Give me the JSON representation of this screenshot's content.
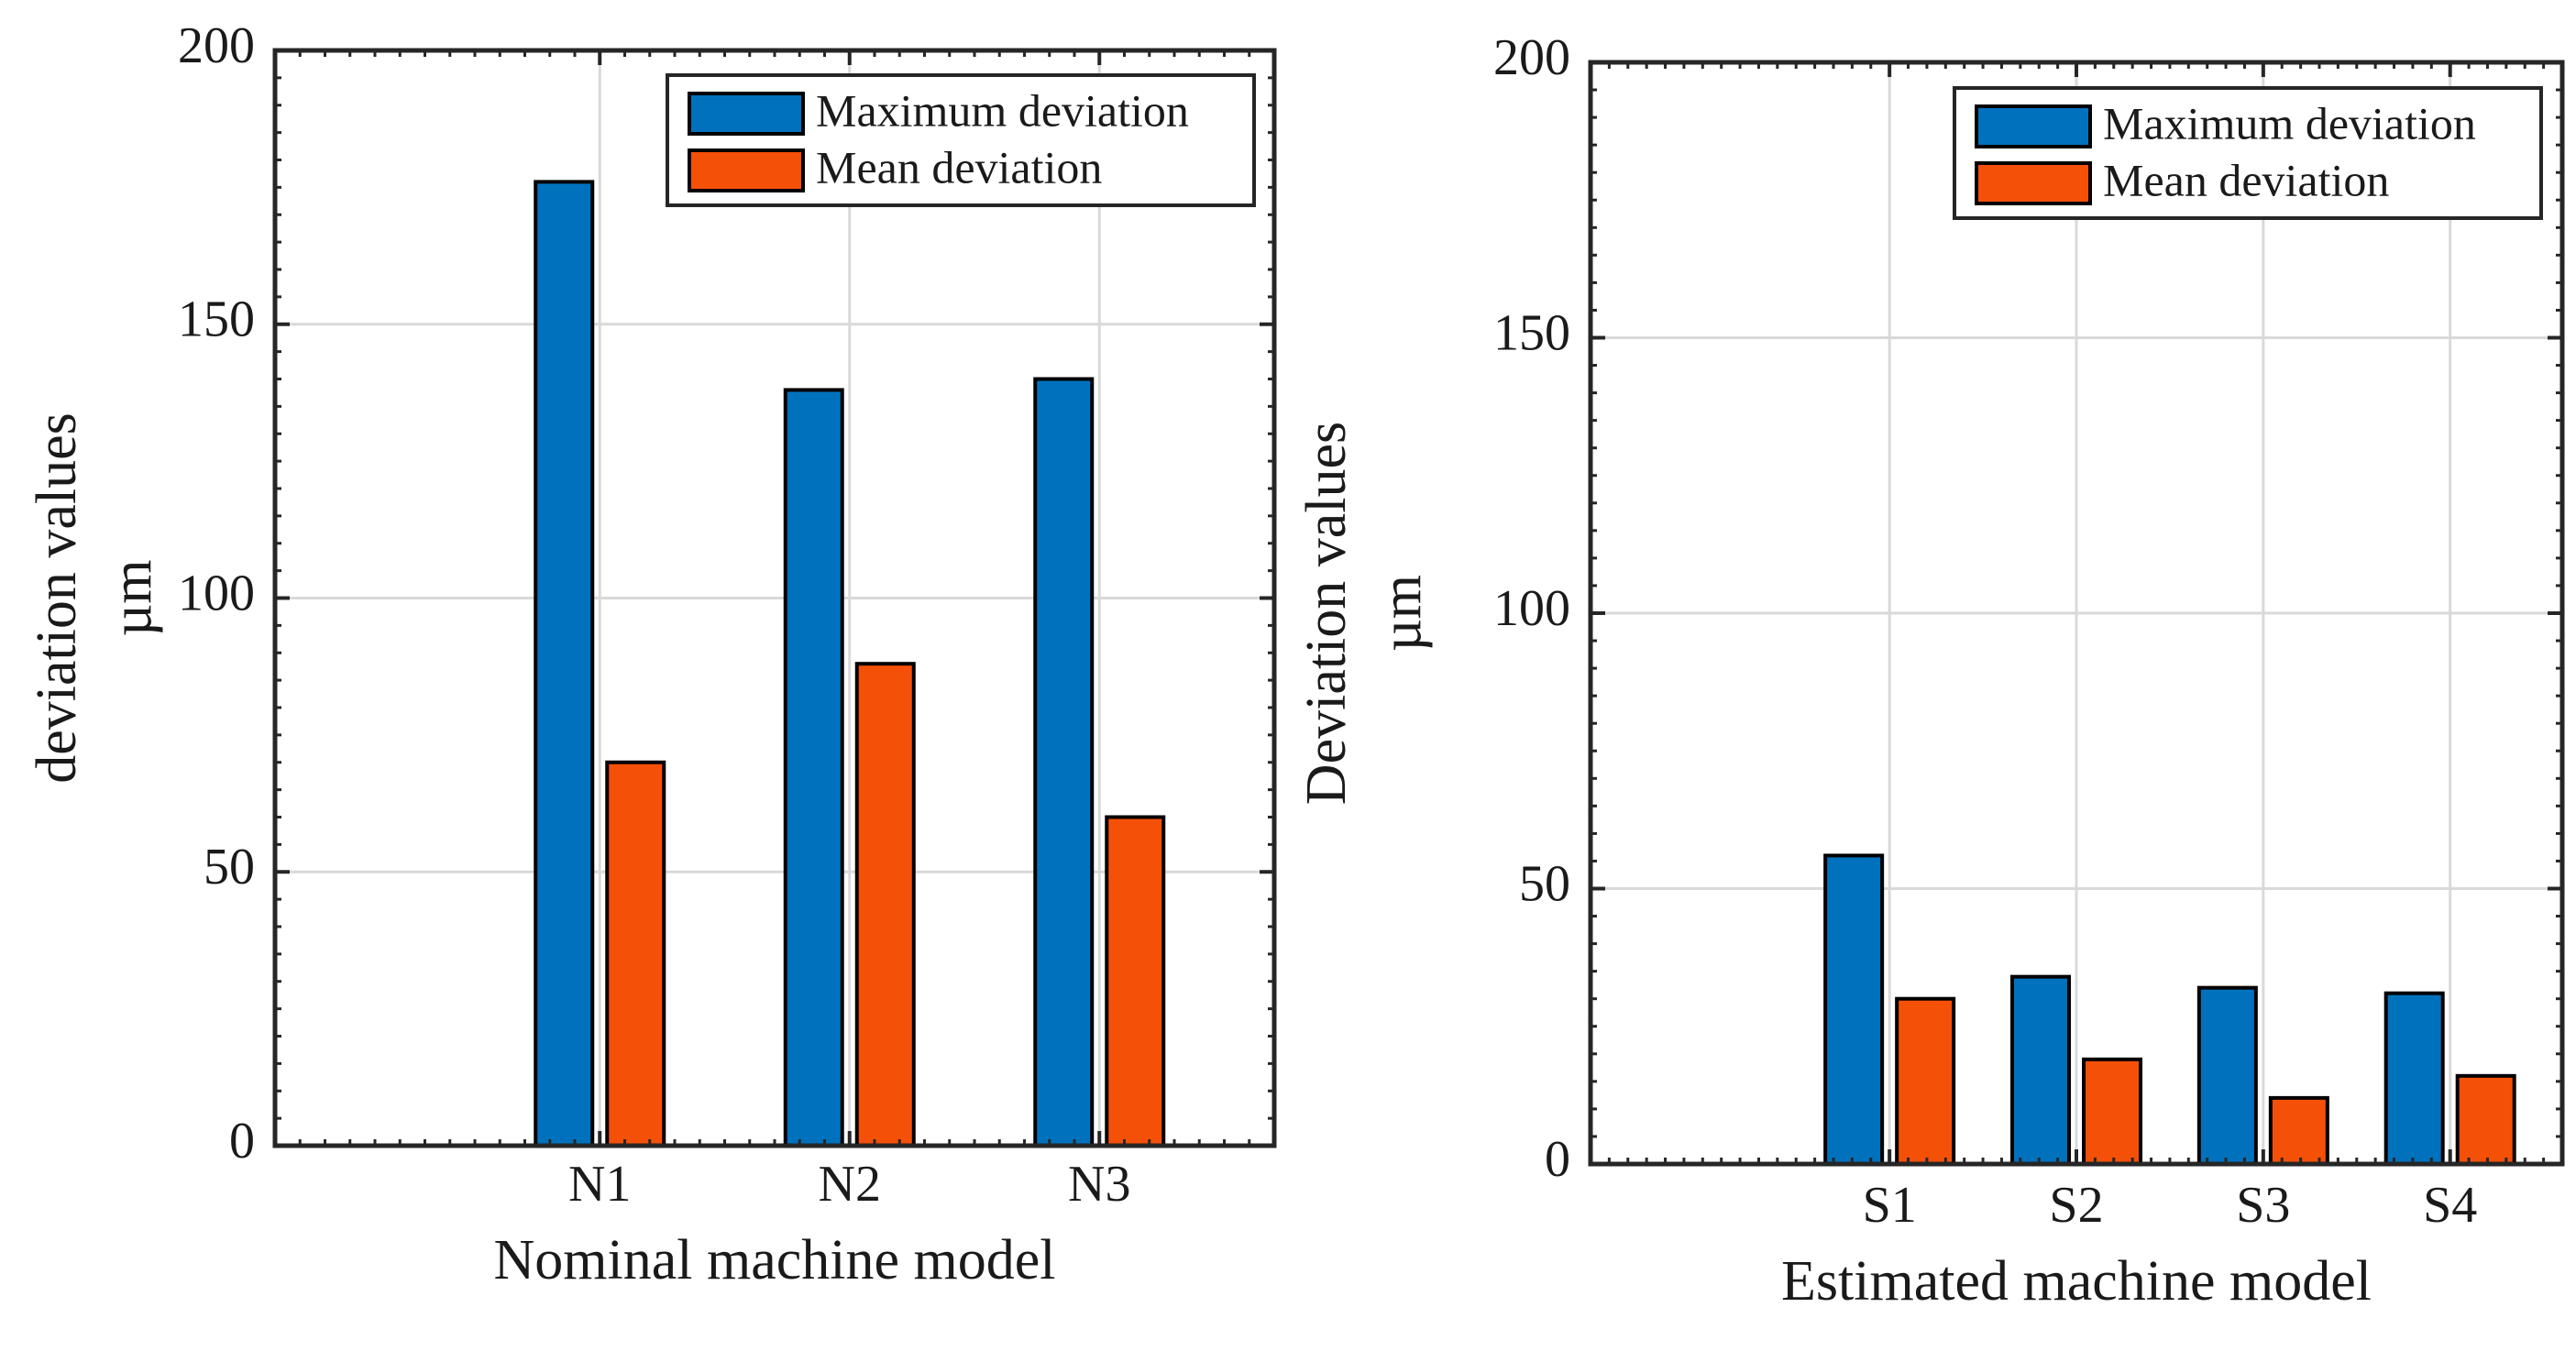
{
  "colors": {
    "max_series": "#0072BD",
    "mean_series": "#F55008",
    "axis": "#262626",
    "grid": "#d9d9d9",
    "background": "#ffffff"
  },
  "chart_data": [
    {
      "type": "bar",
      "categories": [
        "N1",
        "N2",
        "N3"
      ],
      "series": [
        {
          "name": "Maximum deviation",
          "values": [
            176,
            138,
            140
          ]
        },
        {
          "name": "Mean deviation",
          "values": [
            70,
            88,
            60
          ]
        }
      ],
      "title": "",
      "xlabel": "Nominal machine model",
      "ylabel_line1": "deviation values",
      "ylabel_line2": "µm",
      "ylim": [
        0,
        200
      ],
      "yticks": [
        0,
        50,
        100,
        150,
        200
      ],
      "xlim": [
        -0.3,
        3.7
      ],
      "grid": true,
      "legend_position": "top-right"
    },
    {
      "type": "bar",
      "categories": [
        "S1",
        "S2",
        "S3",
        "S4"
      ],
      "series": [
        {
          "name": "Maximum deviation",
          "values": [
            56,
            34,
            32,
            31
          ]
        },
        {
          "name": "Mean deviation",
          "values": [
            30,
            19,
            12,
            16
          ]
        }
      ],
      "title": "",
      "xlabel": "Estimated machine model",
      "ylabel_line1": "Deviation values",
      "ylabel_line2": "µm",
      "ylim": [
        0,
        200
      ],
      "yticks": [
        0,
        50,
        100,
        150,
        200
      ],
      "xlim": [
        -0.6,
        4.6
      ],
      "grid": true,
      "legend_position": "top-right"
    }
  ]
}
